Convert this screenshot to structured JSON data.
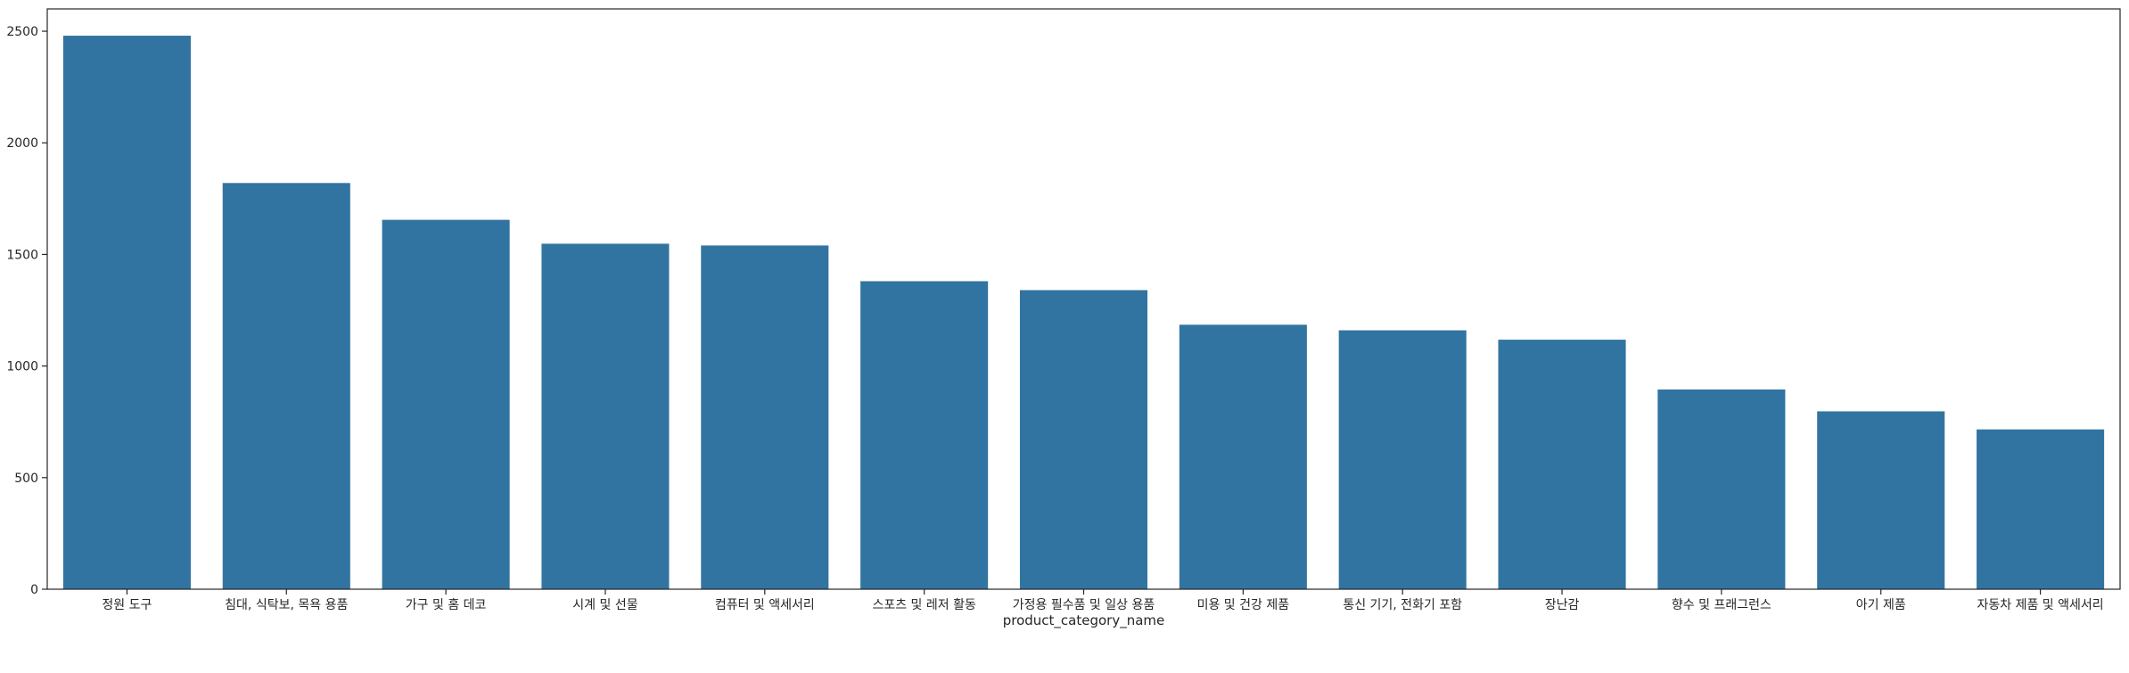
{
  "chart_data": {
    "type": "bar",
    "title": "",
    "xlabel": "product_category_name",
    "ylabel": "",
    "categories": [
      "정원 도구",
      "침대, 식탁보, 목욕 용품",
      "가구 및 홈 데코",
      "시계 및 선물",
      "컴퓨터 및 액세서리",
      "스포츠 및 레저 활동",
      "가정용 필수품 및 일상 용품",
      "미용 및 건강 제품",
      "통신 기기, 전화기 포함",
      "장난감",
      "향수 및 프래그런스",
      "아기 제품",
      "자동차 제품 및 액세서리"
    ],
    "values": [
      2480,
      1820,
      1655,
      1548,
      1540,
      1380,
      1340,
      1185,
      1160,
      1118,
      895,
      797,
      716
    ],
    "ylim": [
      0,
      2600
    ],
    "yticks": [
      0,
      500,
      1000,
      1500,
      2000,
      2500
    ],
    "grid": false,
    "colors": {
      "bar": "#3274a1",
      "axis": "#262626"
    }
  }
}
